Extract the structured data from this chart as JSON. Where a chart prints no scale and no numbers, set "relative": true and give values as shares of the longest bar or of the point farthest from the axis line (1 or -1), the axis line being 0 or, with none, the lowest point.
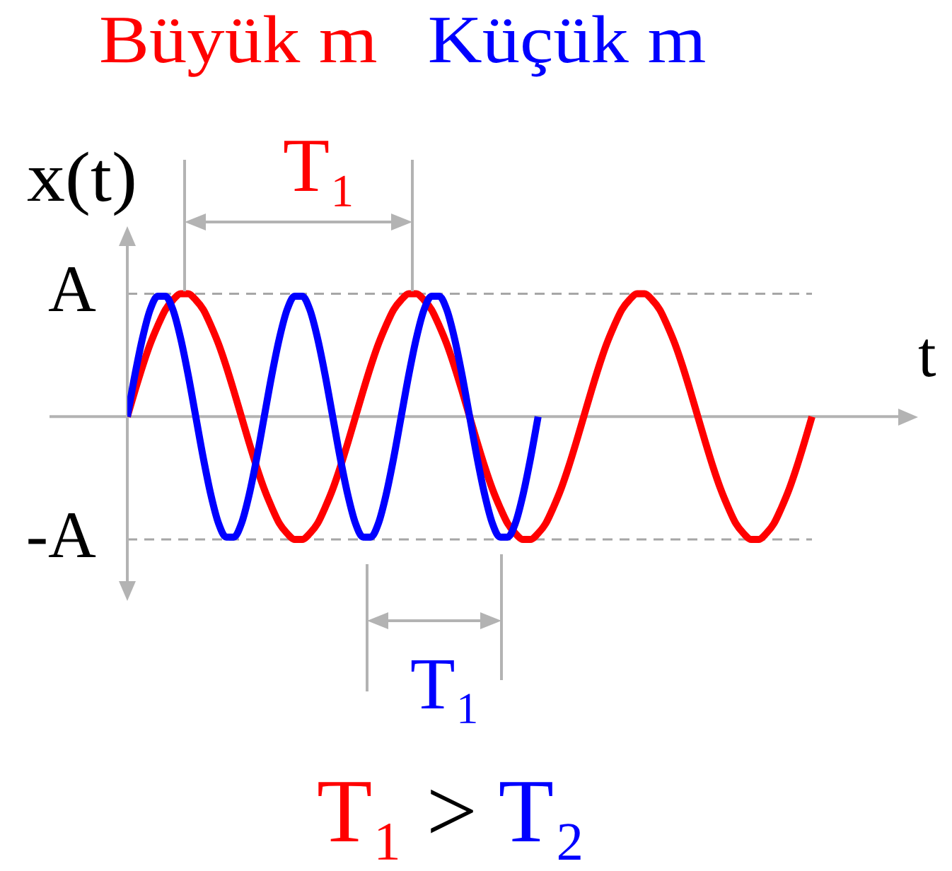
{
  "chart_data": {
    "type": "line",
    "relative": true,
    "categories": [
      null,
      null,
      null,
      null,
      null,
      null,
      null,
      null,
      null,
      null,
      null,
      null,
      null,
      null,
      null,
      null,
      null,
      null,
      null,
      null,
      null,
      null,
      null,
      null,
      null,
      null,
      null,
      null,
      null,
      null,
      null,
      null,
      null,
      null,
      null,
      null,
      null,
      null,
      null,
      null,
      null,
      null,
      null,
      null,
      null,
      null,
      null,
      null,
      null,
      null,
      null,
      null,
      null,
      null,
      null,
      null,
      null,
      null,
      null,
      null,
      null,
      null,
      null,
      null,
      null,
      null,
      null,
      null,
      null,
      null,
      null,
      null,
      null,
      null,
      null,
      null,
      null,
      null,
      null,
      null,
      null,
      null,
      null,
      null,
      null,
      null,
      null,
      null,
      null,
      null,
      null
    ],
    "series": [
      {
        "name": "Büyük m",
        "color": "#ff0000",
        "values": [
          0,
          0.21,
          0.41,
          0.59,
          0.74,
          0.87,
          0.95,
          1,
          1,
          0.95,
          0.87,
          0.74,
          0.59,
          0.41,
          0.21,
          0,
          -0.21,
          -0.41,
          -0.59,
          -0.74,
          -0.87,
          -0.95,
          -1,
          -1,
          -0.95,
          -0.87,
          -0.74,
          -0.59,
          -0.41,
          -0.21,
          0,
          0.21,
          0.41,
          0.59,
          0.74,
          0.87,
          0.95,
          1,
          1,
          0.95,
          0.87,
          0.74,
          0.59,
          0.41,
          0.21,
          0,
          -0.21,
          -0.41,
          -0.59,
          -0.74,
          -0.87,
          -0.95,
          -1,
          -1,
          -0.95,
          -0.87,
          -0.74,
          -0.59,
          -0.41,
          -0.21,
          0,
          0.21,
          0.41,
          0.59,
          0.74,
          0.87,
          0.95,
          1,
          1,
          0.95,
          0.87,
          0.74,
          0.59,
          0.41,
          0.21,
          0,
          -0.21,
          -0.41,
          -0.59,
          -0.74,
          -0.87,
          -0.95,
          -1,
          -1,
          -0.95,
          -0.87,
          -0.74,
          -0.59,
          -0.41,
          -0.21,
          0
        ]
      },
      {
        "name": "Küçük m",
        "color": "#0000ff",
        "values": [
          0,
          0.34,
          0.64,
          0.87,
          0.98,
          0.98,
          0.87,
          0.64,
          0.34,
          0,
          -0.34,
          -0.64,
          -0.87,
          -0.98,
          -0.98,
          -0.87,
          -0.64,
          -0.34,
          0,
          0.34,
          0.64,
          0.87,
          0.98,
          0.98,
          0.87,
          0.64,
          0.34,
          0,
          -0.34,
          -0.64,
          -0.87,
          -0.98,
          -0.98,
          -0.87,
          -0.64,
          -0.34,
          0,
          0.34,
          0.64,
          0.87,
          0.98,
          0.98,
          0.87,
          0.64,
          0.34,
          0,
          -0.34,
          -0.64,
          -0.87,
          -0.98,
          -0.98,
          -0.87,
          -0.64,
          -0.34,
          0,
          null,
          null,
          null,
          null,
          null,
          null,
          null,
          null,
          null,
          null,
          null,
          null,
          null,
          null,
          null,
          null,
          null,
          null,
          null,
          null,
          null,
          null,
          null,
          null,
          null,
          null,
          null,
          null,
          null,
          null,
          null,
          null,
          null,
          null,
          null,
          null
        ]
      }
    ],
    "xlabel": "t",
    "ylabel": "x(t)",
    "ref_lines": [
      {
        "axis": "y",
        "value": 1,
        "label": "A",
        "color": "#a6a6a6",
        "line_style": "dashed"
      },
      {
        "axis": "y",
        "value": -1,
        "label": "-A",
        "color": "#a6a6a6",
        "line_style": "dashed"
      }
    ],
    "annotations": [
      "T₁",
      "T₁",
      "T₁ > T₂"
    ],
    "legend": "top",
    "tick_labels": false,
    "marker": "none",
    "line_style": "solid"
  }
}
